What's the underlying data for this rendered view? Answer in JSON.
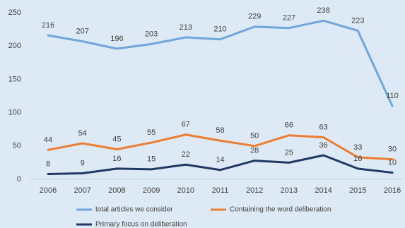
{
  "chart_data": {
    "type": "line",
    "categories": [
      "2006",
      "2007",
      "2008",
      "2009",
      "2010",
      "2011",
      "2012",
      "2013",
      "2014",
      "2015",
      "2016"
    ],
    "series": [
      {
        "name": "total articles we consider",
        "color": "#6fa6dc",
        "values": [
          216,
          207,
          196,
          203,
          213,
          210,
          229,
          227,
          238,
          223,
          110
        ]
      },
      {
        "name": "Containing the word deliberation",
        "color": "#ed7d31",
        "values": [
          44,
          54,
          45,
          55,
          67,
          58,
          50,
          66,
          63,
          33,
          30
        ]
      },
      {
        "name": "Primary focus on deliberation",
        "color": "#1f3864",
        "values": [
          8,
          9,
          16,
          15,
          22,
          14,
          28,
          25,
          36,
          16,
          10
        ]
      }
    ],
    "ylim": [
      0,
      250
    ],
    "yticks": [
      0,
      50,
      100,
      150,
      200,
      250
    ],
    "grid": false
  }
}
